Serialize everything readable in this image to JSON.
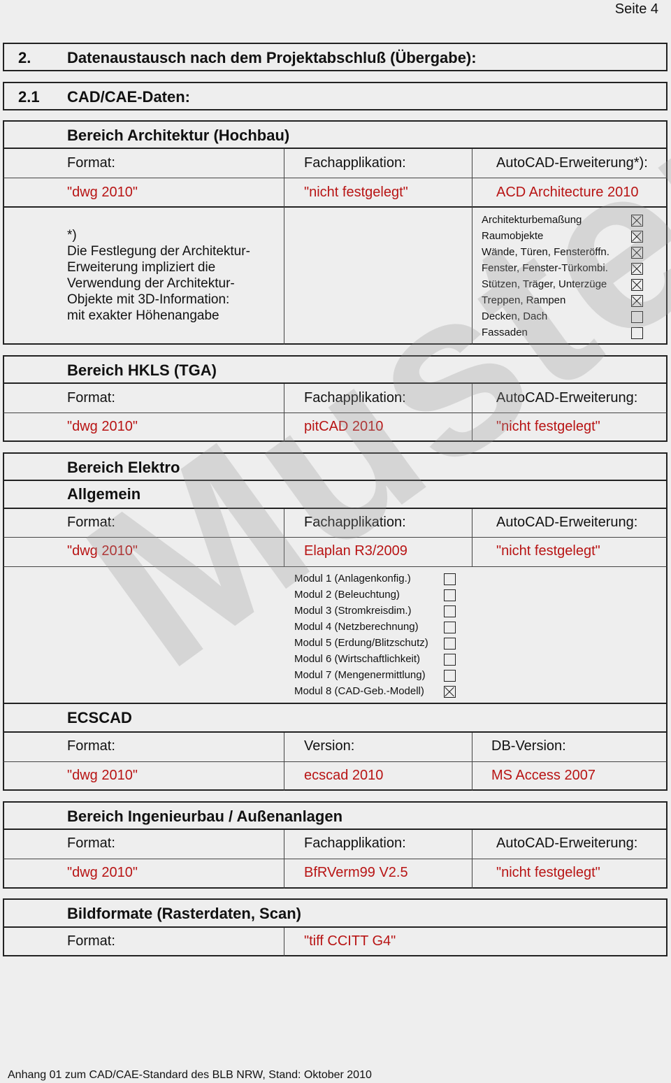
{
  "page_label": "Seite 4",
  "section2": {
    "num": "2.",
    "title": "Datenaustausch nach dem Projektabschluß (Übergabe):"
  },
  "section21": {
    "num": "2.1",
    "title": "CAD/CAE-Daten:"
  },
  "architektur": {
    "title": "Bereich Architektur (Hochbau)",
    "headers": [
      "Format:",
      "Fachapplikation:",
      "AutoCAD-Erweiterung*):"
    ],
    "values": [
      "\"dwg 2010\"",
      "\"nicht festgelegt\"",
      "ACD Architecture 2010"
    ],
    "note": [
      "*)",
      "Die Festlegung der Architektur-",
      "Erweiterung impliziert die",
      "Verwendung der Architektur-",
      "Objekte mit 3D-Information:",
      "mit exakter Höhenangabe"
    ],
    "options": [
      {
        "label": "Architekturbemaßung",
        "checked": true
      },
      {
        "label": "Raumobjekte",
        "checked": true
      },
      {
        "label": "Wände, Türen, Fensteröffn.",
        "checked": true
      },
      {
        "label": "Fenster, Fenster-Türkombi.",
        "checked": true
      },
      {
        "label": "Stützen, Träger, Unterzüge",
        "checked": true
      },
      {
        "label": "Treppen, Rampen",
        "checked": true
      },
      {
        "label": "Decken, Dach",
        "checked": false
      },
      {
        "label": "Fassaden",
        "checked": false
      }
    ]
  },
  "hkls": {
    "title": "Bereich HKLS (TGA)",
    "headers": [
      "Format:",
      "Fachapplikation:",
      "AutoCAD-Erweiterung:"
    ],
    "values": [
      "\"dwg 2010\"",
      "pitCAD 2010",
      "\"nicht festgelegt\""
    ]
  },
  "elektro": {
    "title": "Bereich Elektro",
    "subtitle": "Allgemein",
    "headers": [
      "Format:",
      "Fachapplikation:",
      "AutoCAD-Erweiterung:"
    ],
    "values": [
      "\"dwg 2010\"",
      "Elaplan R3/2009",
      "\"nicht festgelegt\""
    ],
    "modules": [
      {
        "label": "Modul 1 (Anlagenkonfig.)",
        "checked": false
      },
      {
        "label": "Modul 2 (Beleuchtung)",
        "checked": false
      },
      {
        "label": "Modul 3 (Stromkreisdim.)",
        "checked": false
      },
      {
        "label": "Modul 4 (Netzberechnung)",
        "checked": false
      },
      {
        "label": "Modul 5 (Erdung/Blitzschutz)",
        "checked": false
      },
      {
        "label": "Modul 6 (Wirtschaftlichkeit)",
        "checked": false
      },
      {
        "label": "Modul 7 (Mengenermittlung)",
        "checked": false
      },
      {
        "label": "Modul 8 (CAD-Geb.-Modell)",
        "checked": true
      }
    ],
    "ecscad": {
      "title": "ECSCAD",
      "headers": [
        "Format:",
        "Version:",
        "DB-Version:"
      ],
      "values": [
        "\"dwg 2010\"",
        "ecscad 2010",
        "MS Access 2007"
      ]
    }
  },
  "ingenieurbau": {
    "title": "Bereich Ingenieurbau / Außenanlagen",
    "headers": [
      "Format:",
      "Fachapplikation:",
      "AutoCAD-Erweiterung:"
    ],
    "values": [
      "\"dwg 2010\"",
      "BfRVerm99 V2.5",
      "\"nicht festgelegt\""
    ]
  },
  "bildformate": {
    "title": "Bildformate (Rasterdaten, Scan)",
    "header": "Format:",
    "value": "\"tiff CCITT G4\""
  },
  "watermark": "Muster",
  "footer": "Anhang 01 zum CAD/CAE-Standard des BLB NRW,  Stand: Oktober 2010",
  "colors": {
    "value_red": "#b81414",
    "background": "#eeeeee"
  }
}
